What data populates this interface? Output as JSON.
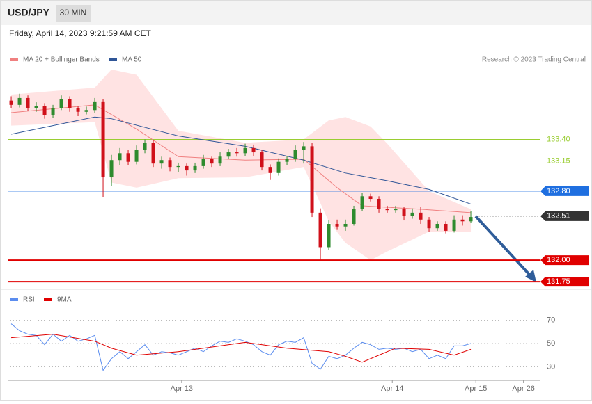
{
  "header": {
    "symbol": "USD/JPY",
    "interval": "30 MIN",
    "timestamp": "Friday, April 14, 2023 9:21:59 AM CET",
    "credit": "Research © 2023 Trading Central"
  },
  "chart_data": [
    {
      "type": "candlestick",
      "xlim": [
        -0.42,
        63.33
      ],
      "ylim": [
        131.67,
        134.21
      ],
      "up_color": "#2e8b2e",
      "down_color": "#d0101a",
      "candles": [
        [
          133.85,
          133.9,
          133.76,
          133.8
        ],
        [
          133.8,
          133.93,
          133.77,
          133.88
        ],
        [
          133.88,
          133.91,
          133.73,
          133.76
        ],
        [
          133.76,
          133.83,
          133.72,
          133.79
        ],
        [
          133.79,
          133.82,
          133.64,
          133.68
        ],
        [
          133.68,
          133.8,
          133.65,
          133.76
        ],
        [
          133.76,
          133.91,
          133.74,
          133.87
        ],
        [
          133.87,
          133.9,
          133.72,
          133.76
        ],
        [
          133.76,
          133.79,
          133.67,
          133.72
        ],
        [
          133.72,
          133.78,
          133.69,
          133.74
        ],
        [
          133.74,
          133.88,
          133.71,
          133.84
        ],
        [
          133.84,
          133.87,
          132.73,
          132.96
        ],
        [
          132.96,
          133.22,
          132.86,
          133.16
        ],
        [
          133.16,
          133.3,
          133.1,
          133.24
        ],
        [
          133.24,
          133.28,
          133.1,
          133.14
        ],
        [
          133.14,
          133.33,
          133.11,
          133.28
        ],
        [
          133.28,
          133.4,
          133.24,
          133.36
        ],
        [
          133.36,
          133.39,
          133.08,
          133.12
        ],
        [
          133.12,
          133.2,
          133.06,
          133.16
        ],
        [
          133.16,
          133.19,
          133.03,
          133.08
        ],
        [
          133.08,
          133.13,
          133.02,
          133.09
        ],
        [
          133.09,
          133.12,
          132.98,
          133.04
        ],
        [
          133.04,
          133.13,
          133.01,
          133.09
        ],
        [
          133.09,
          133.22,
          133.06,
          133.17
        ],
        [
          133.17,
          133.2,
          133.08,
          133.12
        ],
        [
          133.12,
          133.25,
          133.09,
          133.2
        ],
        [
          133.2,
          133.29,
          133.17,
          133.25
        ],
        [
          133.25,
          133.3,
          133.2,
          133.24
        ],
        [
          133.24,
          133.35,
          133.21,
          133.3
        ],
        [
          133.3,
          133.34,
          133.21,
          133.25
        ],
        [
          133.25,
          133.28,
          133.04,
          133.08
        ],
        [
          133.08,
          133.11,
          132.93,
          133.01
        ],
        [
          133.01,
          133.18,
          132.98,
          133.14
        ],
        [
          133.14,
          133.21,
          133.1,
          133.17
        ],
        [
          133.17,
          133.33,
          133.14,
          133.28
        ],
        [
          133.28,
          133.37,
          133.12,
          133.32
        ],
        [
          133.32,
          133.36,
          132.5,
          132.55
        ],
        [
          132.55,
          132.6,
          132.0,
          132.15
        ],
        [
          132.15,
          132.46,
          132.12,
          132.42
        ],
        [
          132.42,
          132.47,
          132.35,
          132.39
        ],
        [
          132.39,
          132.47,
          132.34,
          132.42
        ],
        [
          132.42,
          132.63,
          132.4,
          132.59
        ],
        [
          132.59,
          132.78,
          132.57,
          132.74
        ],
        [
          132.74,
          132.77,
          132.68,
          132.71
        ],
        [
          132.71,
          132.74,
          132.55,
          132.59
        ],
        [
          132.59,
          132.63,
          132.55,
          132.58
        ],
        [
          132.58,
          132.63,
          132.55,
          132.59
        ],
        [
          132.59,
          132.62,
          132.46,
          132.51
        ],
        [
          132.51,
          132.6,
          132.48,
          132.55
        ],
        [
          132.55,
          132.62,
          132.42,
          132.47
        ],
        [
          132.47,
          132.5,
          132.33,
          132.37
        ],
        [
          132.37,
          132.45,
          132.34,
          132.42
        ],
        [
          132.42,
          132.45,
          132.31,
          132.34
        ],
        [
          132.34,
          132.52,
          132.32,
          132.47
        ],
        [
          132.47,
          132.52,
          132.4,
          132.45
        ],
        [
          132.45,
          132.57,
          132.43,
          132.5
        ]
      ],
      "bands": {
        "color": "#ffe3e3",
        "x": [
          0,
          10,
          12,
          15,
          20,
          28,
          35,
          38,
          40,
          43,
          45,
          50,
          55
        ],
        "upper": [
          133.92,
          134.0,
          134.21,
          134.15,
          133.5,
          133.36,
          133.4,
          133.62,
          133.66,
          133.55,
          133.35,
          132.8,
          132.59
        ],
        "lower": [
          133.56,
          133.6,
          132.9,
          132.84,
          132.95,
          132.96,
          133.08,
          132.45,
          132.2,
          132.0,
          132.1,
          132.33,
          132.33
        ]
      },
      "series": [
        {
          "name": "MA 20 + Bollinger Bands",
          "color": "#f08080",
          "x": [
            0,
            10,
            15,
            20,
            28,
            35,
            39,
            42,
            49,
            55
          ],
          "values": [
            133.71,
            133.8,
            133.52,
            133.2,
            133.16,
            133.17,
            132.84,
            132.63,
            132.59,
            132.55
          ]
        },
        {
          "name": "MA 50",
          "color": "#2f5597",
          "x": [
            0,
            10,
            12,
            20,
            28,
            35,
            40,
            45,
            50,
            55
          ],
          "values": [
            133.46,
            133.66,
            133.64,
            133.44,
            133.32,
            133.16,
            133.01,
            132.92,
            132.82,
            132.65
          ]
        }
      ],
      "levels": [
        {
          "value": 133.4,
          "label": "133.40",
          "color": "#9acd32",
          "style": "text"
        },
        {
          "value": 133.15,
          "label": "133.15",
          "color": "#9acd32",
          "style": "text"
        },
        {
          "value": 132.8,
          "label": "132.80",
          "color": "#1f6fe0",
          "style": "box"
        },
        {
          "value": 132.51,
          "label": "132.51",
          "color": "#333333",
          "style": "box-dotted"
        },
        {
          "value": 132.0,
          "label": "132.00",
          "color": "#e00000",
          "style": "box-thick"
        },
        {
          "value": 131.75,
          "label": "131.75",
          "color": "#e00000",
          "style": "box-thick"
        }
      ]
    },
    {
      "type": "line",
      "xlim": [
        -0.42,
        63.33
      ],
      "ylim": [
        18,
        88
      ],
      "yticks": [
        30,
        50,
        70
      ],
      "xticks": [
        {
          "value": 20.4,
          "label": "Apr 13"
        },
        {
          "value": 45.6,
          "label": "Apr 14"
        },
        {
          "value": 55.6,
          "label": "Apr 15"
        },
        {
          "value": 61.3,
          "label": "Apr 26"
        }
      ],
      "series": [
        {
          "name": "RSI",
          "color": "#5b8def",
          "values": [
            67,
            61,
            58,
            57,
            49,
            58,
            52,
            57,
            52,
            54,
            57,
            27,
            37,
            43,
            37,
            43,
            49,
            40,
            43,
            42,
            40,
            43,
            46,
            43,
            48,
            52,
            51,
            54,
            52,
            49,
            43,
            40,
            49,
            52,
            51,
            55,
            33,
            28,
            39,
            37,
            40,
            46,
            51,
            49,
            45,
            46,
            45,
            46,
            43,
            45,
            37,
            40,
            37,
            48,
            48,
            50
          ]
        },
        {
          "name": "9MA",
          "color": "#e00000",
          "x": [
            0,
            5,
            10,
            12,
            15,
            20,
            28,
            33,
            38,
            40,
            42,
            44,
            46,
            50,
            53,
            55
          ],
          "values": [
            55,
            58,
            52,
            46,
            40,
            43,
            51,
            46,
            43,
            39,
            34,
            40,
            46,
            45,
            40,
            45
          ]
        }
      ]
    }
  ]
}
